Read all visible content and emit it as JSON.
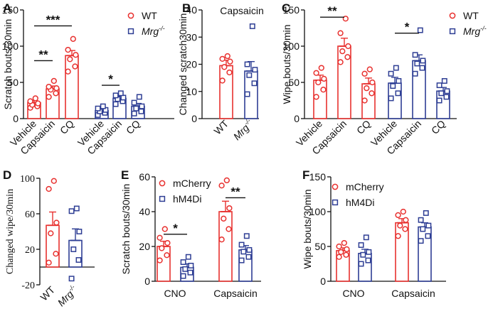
{
  "colors": {
    "wt": "#e8312f",
    "mrg": "#2e3e94",
    "axis": "#111111"
  },
  "chart_data": [
    {
      "id": "A",
      "type": "bar",
      "panel_label": "A",
      "ylabel": "Scratch bouts/30min",
      "ylim": [
        0,
        150
      ],
      "yticks": [
        0,
        50,
        100,
        150
      ],
      "categories": [
        "Vehicle",
        "Capsaicin",
        "CQ",
        "Vehicle",
        "Capsaicin",
        "CQ"
      ],
      "groups": [
        {
          "name": "WT",
          "bars": [
            {
              "label": "Vehicle",
              "mean": 22,
              "sem": 3,
              "points": [
                15,
                17,
                19,
                21,
                24,
                28
              ]
            },
            {
              "label": "Capsaicin",
              "mean": 41,
              "sem": 4,
              "points": [
                30,
                35,
                40,
                42,
                44,
                52
              ]
            },
            {
              "label": "CQ",
              "mean": 87,
              "sem": 7,
              "points": [
                65,
                72,
                82,
                88,
                95,
                110
              ]
            }
          ]
        },
        {
          "name": "Mrg-/-",
          "bars": [
            {
              "label": "Vehicle",
              "mean": 11,
              "sem": 2,
              "points": [
                5,
                8,
                10,
                12,
                14,
                17
              ]
            },
            {
              "label": "Capsaicin",
              "mean": 28,
              "sem": 3,
              "points": [
                20,
                24,
                27,
                29,
                32,
                35
              ]
            },
            {
              "label": "CQ",
              "mean": 17,
              "sem": 4,
              "points": [
                7,
                10,
                14,
                17,
                22,
                30
              ]
            }
          ]
        }
      ],
      "legend": [
        "WT",
        "Mrg-/-"
      ],
      "significance": [
        {
          "from": 0,
          "to": 1,
          "y": 80,
          "label": "**"
        },
        {
          "from": 0,
          "to": 2,
          "y": 128,
          "label": "***"
        },
        {
          "from": 3,
          "to": 4,
          "y": 46,
          "label": "*"
        }
      ]
    },
    {
      "id": "B",
      "type": "bar",
      "panel_label": "B",
      "title": "Capsaicin",
      "ylabel": "Changed scratch30min",
      "ylim": [
        0,
        40
      ],
      "yticks": [
        0,
        10,
        20,
        30,
        40
      ],
      "categories": [
        "WT",
        "Mrg-/-"
      ],
      "groups": [
        {
          "name": "WT",
          "bars": [
            {
              "label": "WT",
              "mean": 19.5,
              "sem": 2,
              "points": [
                14,
                17,
                19,
                21,
                22,
                23
              ]
            }
          ]
        },
        {
          "name": "Mrg-/-",
          "bars": [
            {
              "label": "Mrg-/-",
              "mean": 17.5,
              "sem": 3.5,
              "points": [
                9,
                13,
                16,
                18,
                20,
                34
              ]
            }
          ]
        }
      ]
    },
    {
      "id": "C",
      "type": "bar",
      "panel_label": "C",
      "ylabel": "Wipe bouts/30min",
      "ylim": [
        0,
        150
      ],
      "yticks": [
        0,
        50,
        100,
        150
      ],
      "categories": [
        "Vehicle",
        "Capsaicin",
        "CQ",
        "Vehicle",
        "Capsaicin",
        "CQ"
      ],
      "groups": [
        {
          "name": "WT",
          "bars": [
            {
              "label": "Vehicle",
              "mean": 53,
              "sem": 7,
              "points": [
                30,
                40,
                50,
                55,
                63,
                70
              ]
            },
            {
              "label": "Capsaicin",
              "mean": 100,
              "sem": 11,
              "points": [
                78,
                85,
                93,
                100,
                118,
                138
              ]
            },
            {
              "label": "CQ",
              "mean": 48,
              "sem": 8,
              "points": [
                25,
                35,
                42,
                50,
                62,
                68
              ]
            }
          ]
        },
        {
          "name": "Mrg-/-",
          "bars": [
            {
              "label": "Vehicle",
              "mean": 49,
              "sem": 8,
              "points": [
                28,
                35,
                45,
                52,
                62,
                70
              ]
            },
            {
              "label": "Capsaicin",
              "mean": 80,
              "sem": 8,
              "points": [
                62,
                70,
                76,
                80,
                88,
                122
              ]
            },
            {
              "label": "CQ",
              "mean": 38,
              "sem": 5,
              "points": [
                25,
                30,
                35,
                38,
                46,
                52
              ]
            }
          ]
        }
      ],
      "legend": [
        "WT",
        "Mrg-/-"
      ],
      "significance": [
        {
          "from": 0,
          "to": 1,
          "y": 140,
          "label": "**"
        },
        {
          "from": 3,
          "to": 4,
          "y": 118,
          "label": "*"
        }
      ]
    },
    {
      "id": "D",
      "type": "bar",
      "panel_label": "D",
      "ylabel": "Changed wipe/30min",
      "ylim": [
        -20,
        100
      ],
      "yticks": [
        -20,
        20,
        60,
        100
      ],
      "categories": [
        "WT",
        "Mrg-/-"
      ],
      "groups": [
        {
          "name": "WT",
          "bars": [
            {
              "label": "WT",
              "mean": 47,
              "sem": 15,
              "points": [
                5,
                15,
                38,
                50,
                88,
                97
              ]
            }
          ]
        },
        {
          "name": "Mrg-/-",
          "bars": [
            {
              "label": "Mrg-/-",
              "mean": 30,
              "sem": 13,
              "points": [
                -13,
                8,
                20,
                40,
                63,
                66
              ]
            }
          ]
        }
      ]
    },
    {
      "id": "E",
      "type": "bar",
      "panel_label": "E",
      "ylabel": "Scratch bouts/30min",
      "ylim": [
        0,
        60
      ],
      "yticks": [
        0,
        20,
        40,
        60
      ],
      "categories": [
        "CNO",
        "Capsaicin"
      ],
      "series": [
        {
          "name": "mCherry",
          "bars": [
            {
              "label": "CNO",
              "mean": 20,
              "sem": 3,
              "points": [
                12,
                15,
                19,
                22,
                25,
                30
              ]
            },
            {
              "label": "Capsaicin",
              "mean": 40,
              "sem": 6,
              "points": [
                24,
                30,
                36,
                42,
                55,
                58
              ]
            }
          ]
        },
        {
          "name": "hM4Di",
          "bars": [
            {
              "label": "CNO",
              "mean": 8,
              "sem": 2,
              "points": [
                3,
                5,
                7,
                9,
                11,
                14
              ]
            },
            {
              "label": "Capsaicin",
              "mean": 18,
              "sem": 2.5,
              "points": [
                12,
                14,
                17,
                18,
                21,
                26
              ]
            }
          ]
        }
      ],
      "legend": [
        "mCherry",
        "hM4Di"
      ],
      "significance": [
        {
          "from": 0,
          "to": 1,
          "y": 27,
          "label": "*"
        },
        {
          "from": 2,
          "to": 3,
          "y": 48,
          "label": "**"
        }
      ]
    },
    {
      "id": "F",
      "type": "bar",
      "panel_label": "F",
      "ylabel": "Wipe bouts/30min",
      "ylim": [
        0,
        150
      ],
      "yticks": [
        0,
        50,
        100,
        150
      ],
      "categories": [
        "CNO",
        "Capsaicin"
      ],
      "series": [
        {
          "name": "mCherry",
          "bars": [
            {
              "label": "CNO",
              "mean": 44,
              "sem": 4,
              "points": [
                35,
                38,
                42,
                46,
                50,
                55
              ]
            },
            {
              "label": "Capsaicin",
              "mean": 84,
              "sem": 6,
              "points": [
                65,
                75,
                80,
                88,
                95,
                100
              ]
            }
          ]
        },
        {
          "name": "hM4Di",
          "bars": [
            {
              "label": "CNO",
              "mean": 40,
              "sem": 6,
              "points": [
                25,
                30,
                38,
                42,
                52,
                63
              ]
            },
            {
              "label": "Capsaicin",
              "mean": 78,
              "sem": 6,
              "points": [
                58,
                65,
                75,
                80,
                88,
                98
              ]
            }
          ]
        }
      ],
      "legend": [
        "mCherry",
        "hM4Di"
      ]
    }
  ]
}
